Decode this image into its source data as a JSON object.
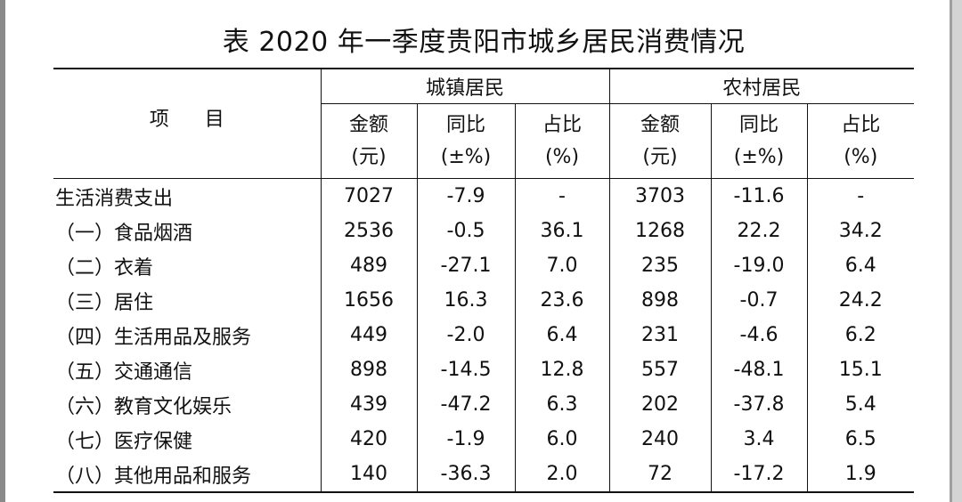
{
  "title": "表  2020 年一季度贵阳市城乡居民消费情况",
  "header": {
    "item": "项目",
    "groups": [
      "城镇居民",
      "农村居民"
    ],
    "columns": [
      {
        "label": "金额",
        "unit": "(元)"
      },
      {
        "label": "同比",
        "unit": "(±%)"
      },
      {
        "label": "占比",
        "unit": "(%)"
      },
      {
        "label": "金额",
        "unit": "(元)"
      },
      {
        "label": "同比",
        "unit": "(±%)"
      },
      {
        "label": "占比",
        "unit": "(%)"
      }
    ]
  },
  "rows": [
    {
      "name": "生活消费支出",
      "urban_amount": "7027",
      "urban_yoy": "-7.9",
      "urban_share": "-",
      "rural_amount": "3703",
      "rural_yoy": "-11.6",
      "rural_share": "-"
    },
    {
      "name": "（一）食品烟酒",
      "urban_amount": "2536",
      "urban_yoy": "-0.5",
      "urban_share": "36.1",
      "rural_amount": "1268",
      "rural_yoy": "22.2",
      "rural_share": "34.2"
    },
    {
      "name": "（二）衣着",
      "urban_amount": "489",
      "urban_yoy": "-27.1",
      "urban_share": "7.0",
      "rural_amount": "235",
      "rural_yoy": "-19.0",
      "rural_share": "6.4"
    },
    {
      "name": "（三）居住",
      "urban_amount": "1656",
      "urban_yoy": "16.3",
      "urban_share": "23.6",
      "rural_amount": "898",
      "rural_yoy": "-0.7",
      "rural_share": "24.2"
    },
    {
      "name": "（四）生活用品及服务",
      "urban_amount": "449",
      "urban_yoy": "-2.0",
      "urban_share": "6.4",
      "rural_amount": "231",
      "rural_yoy": "-4.6",
      "rural_share": "6.2"
    },
    {
      "name": "（五）交通通信",
      "urban_amount": "898",
      "urban_yoy": "-14.5",
      "urban_share": "12.8",
      "rural_amount": "557",
      "rural_yoy": "-48.1",
      "rural_share": "15.1"
    },
    {
      "name": "（六）教育文化娱乐",
      "urban_amount": "439",
      "urban_yoy": "-47.2",
      "urban_share": "6.3",
      "rural_amount": "202",
      "rural_yoy": "-37.8",
      "rural_share": "5.4"
    },
    {
      "name": "（七）医疗保健",
      "urban_amount": "420",
      "urban_yoy": "-1.9",
      "urban_share": "6.0",
      "rural_amount": "240",
      "rural_yoy": "3.4",
      "rural_share": "6.5"
    },
    {
      "name": "（八）其他用品和服务",
      "urban_amount": "140",
      "urban_yoy": "-36.3",
      "urban_share": "2.0",
      "rural_amount": "72",
      "rural_yoy": "-17.2",
      "rural_share": "1.9"
    }
  ]
}
